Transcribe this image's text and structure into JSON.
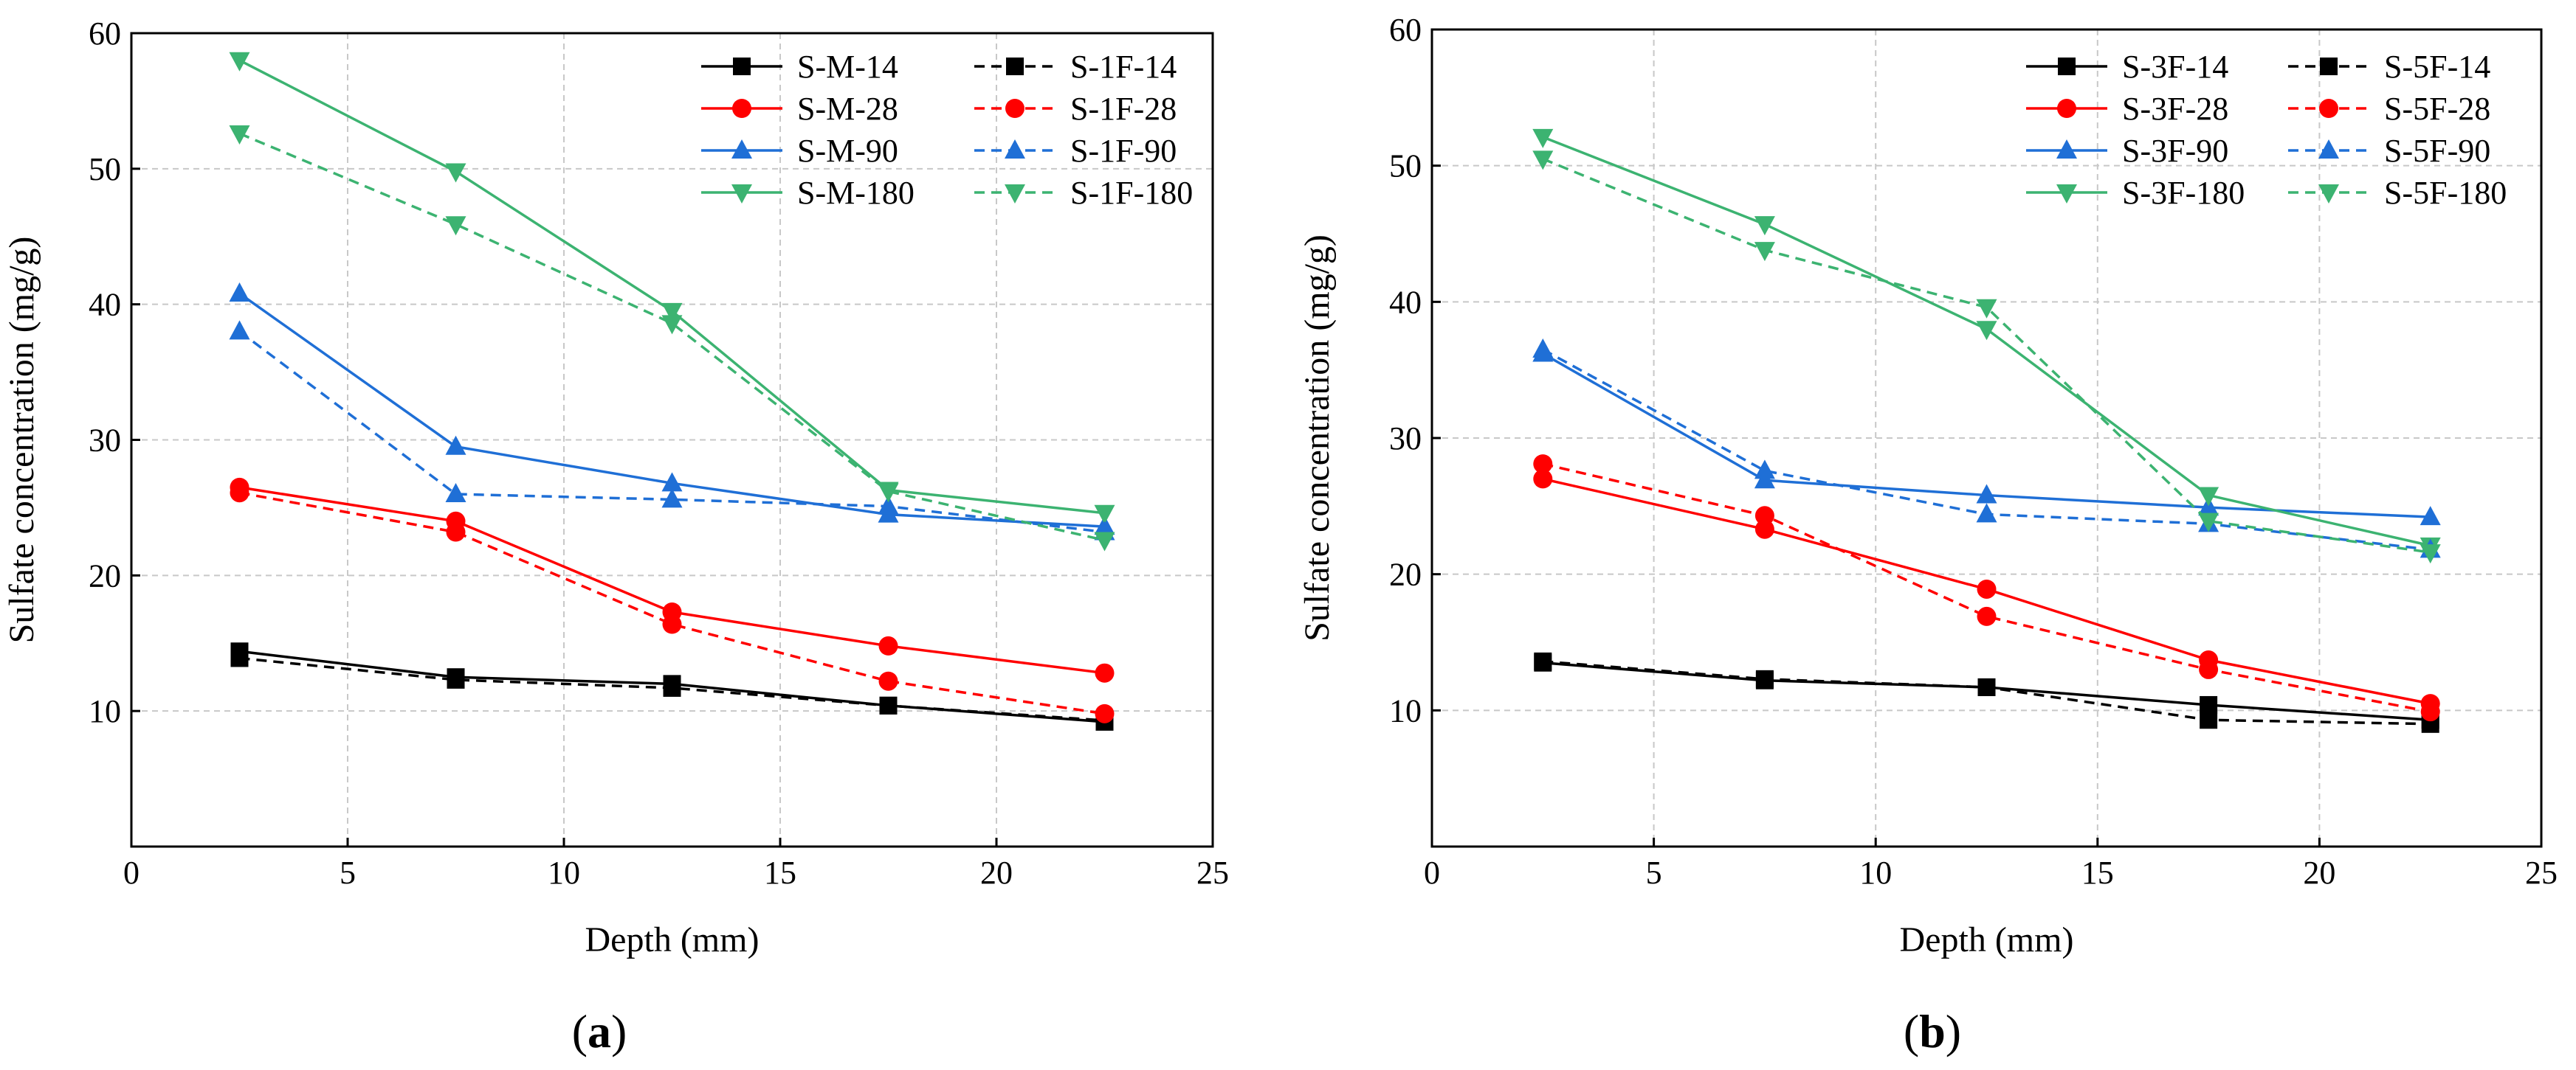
{
  "figure": {
    "panels": [
      "(a)",
      "(b)"
    ]
  },
  "colors": {
    "black": "#000000",
    "red": "#ff0000",
    "blue": "#1f6fd6",
    "green": "#3cb371",
    "grid": "#c8c8c8"
  },
  "chart_data": [
    {
      "type": "line",
      "panel_label": "(a)",
      "xlabel": "Depth (mm)",
      "ylabel": "Sulfate concentration (mg/g)",
      "xlim": [
        0,
        25
      ],
      "ylim": [
        0,
        60
      ],
      "xticks": [
        0,
        5,
        10,
        15,
        20,
        25
      ],
      "yticks": [
        10,
        20,
        30,
        40,
        50,
        60
      ],
      "grid": true,
      "legend_position": "top-right",
      "x": [
        2.5,
        7.5,
        12.5,
        17.5,
        22.5
      ],
      "series": [
        {
          "name": "S-M-14",
          "color": "black",
          "marker": "square",
          "dash": "solid",
          "values": [
            14.4,
            12.5,
            12.0,
            10.4,
            9.2
          ]
        },
        {
          "name": "S-M-28",
          "color": "red",
          "marker": "circle",
          "dash": "solid",
          "values": [
            26.5,
            24.0,
            17.3,
            14.8,
            12.8
          ]
        },
        {
          "name": "S-M-90",
          "color": "blue",
          "marker": "triangle",
          "dash": "solid",
          "values": [
            40.8,
            29.5,
            26.8,
            24.5,
            23.6
          ]
        },
        {
          "name": "S-M-180",
          "color": "green",
          "marker": "tri_down",
          "dash": "solid",
          "values": [
            58.0,
            49.8,
            39.5,
            26.3,
            24.6
          ]
        },
        {
          "name": "S-1F-14",
          "color": "black",
          "marker": "square",
          "dash": "dashed",
          "values": [
            13.9,
            12.3,
            11.7,
            10.4,
            9.3
          ]
        },
        {
          "name": "S-1F-28",
          "color": "red",
          "marker": "circle",
          "dash": "dashed",
          "values": [
            26.1,
            23.2,
            16.4,
            12.2,
            9.8
          ]
        },
        {
          "name": "S-1F-90",
          "color": "blue",
          "marker": "triangle",
          "dash": "dashed",
          "values": [
            38.0,
            26.0,
            25.6,
            25.1,
            23.2
          ]
        },
        {
          "name": "S-1F-180",
          "color": "green",
          "marker": "tri_down",
          "dash": "dashed",
          "values": [
            52.6,
            45.9,
            38.6,
            26.2,
            22.6
          ]
        }
      ]
    },
    {
      "type": "line",
      "panel_label": "(b)",
      "xlabel": "Depth (mm)",
      "ylabel": "Sulfate concentration (mg/g)",
      "xlim": [
        0,
        25
      ],
      "ylim": [
        0,
        60
      ],
      "xticks": [
        0,
        5,
        10,
        15,
        20,
        25
      ],
      "yticks": [
        10,
        20,
        30,
        40,
        50,
        60
      ],
      "grid": true,
      "legend_position": "top-right",
      "x": [
        2.5,
        7.5,
        12.5,
        17.5,
        22.5
      ],
      "series": [
        {
          "name": "S-3F-14",
          "color": "black",
          "marker": "square",
          "dash": "solid",
          "values": [
            13.5,
            12.2,
            11.7,
            10.4,
            9.3
          ]
        },
        {
          "name": "S-3F-28",
          "color": "red",
          "marker": "circle",
          "dash": "solid",
          "values": [
            27.0,
            23.3,
            18.9,
            13.7,
            10.5
          ]
        },
        {
          "name": "S-3F-90",
          "color": "blue",
          "marker": "triangle",
          "dash": "solid",
          "values": [
            36.2,
            26.9,
            25.8,
            24.9,
            24.2
          ]
        },
        {
          "name": "S-3F-180",
          "color": "green",
          "marker": "tri_down",
          "dash": "solid",
          "values": [
            52.1,
            45.7,
            38.0,
            25.8,
            22.1
          ]
        },
        {
          "name": "S-5F-14",
          "color": "black",
          "marker": "square",
          "dash": "dashed",
          "values": [
            13.6,
            12.3,
            11.7,
            9.3,
            9.0
          ]
        },
        {
          "name": "S-5F-28",
          "color": "red",
          "marker": "circle",
          "dash": "dashed",
          "values": [
            28.1,
            24.3,
            16.9,
            13.0,
            9.9
          ]
        },
        {
          "name": "S-5F-90",
          "color": "blue",
          "marker": "triangle",
          "dash": "dashed",
          "values": [
            36.5,
            27.6,
            24.4,
            23.7,
            21.8
          ]
        },
        {
          "name": "S-5F-180",
          "color": "green",
          "marker": "tri_down",
          "dash": "dashed",
          "values": [
            50.5,
            43.8,
            39.6,
            23.9,
            21.6
          ]
        }
      ]
    }
  ]
}
